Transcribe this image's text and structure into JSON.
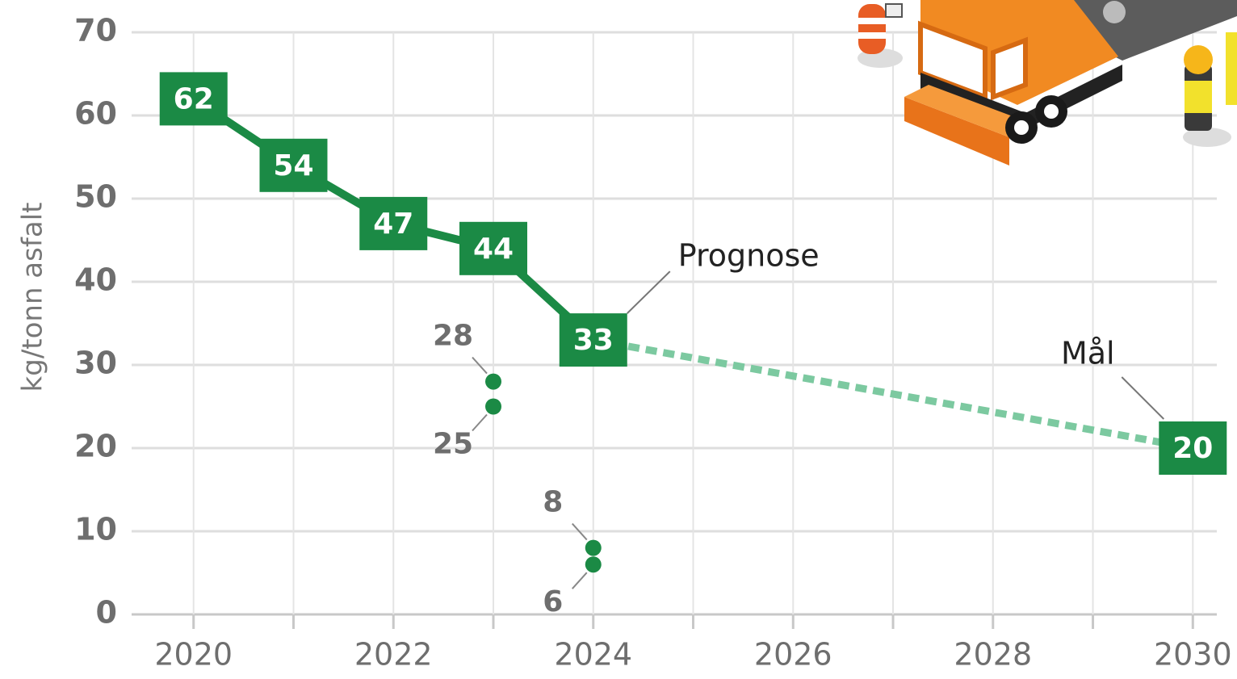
{
  "chart_data": {
    "type": "line",
    "y_label": "kg/tonn asfalt",
    "xlim": [
      2019.38,
      2030.24
    ],
    "xticks": [
      2020,
      2022,
      2024,
      2026,
      2028,
      2030
    ],
    "x_minor_ticks": [
      2021,
      2023,
      2025,
      2027,
      2029
    ],
    "ylim": [
      0,
      70
    ],
    "yticks": [
      0,
      10,
      20,
      30,
      40,
      50,
      60,
      70
    ],
    "grid": true,
    "series": [
      {
        "color": "#1b8a45",
        "style": "solid",
        "x": [
          2020,
          2021,
          2022,
          2023,
          2024
        ],
        "values": [
          62,
          54,
          47,
          44,
          33
        ]
      },
      {
        "color": "#7cc9a0",
        "style": "dashed",
        "x": [
          2024,
          2030
        ],
        "values": [
          33,
          20
        ]
      },
      {
        "color": "#1b8a45",
        "style": "points",
        "x": [
          2023,
          2023,
          2024,
          2024
        ],
        "values": [
          28,
          25,
          8,
          6
        ]
      }
    ],
    "annotations": [
      "Prognose",
      "Mål"
    ]
  }
}
